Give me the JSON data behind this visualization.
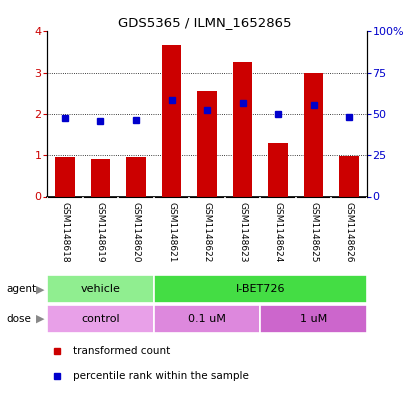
{
  "title": "GDS5365 / ILMN_1652865",
  "samples": [
    "GSM1148618",
    "GSM1148619",
    "GSM1148620",
    "GSM1148621",
    "GSM1148622",
    "GSM1148623",
    "GSM1148624",
    "GSM1148625",
    "GSM1148626"
  ],
  "bar_values": [
    0.95,
    0.92,
    0.95,
    3.67,
    2.55,
    3.27,
    1.3,
    3.0,
    0.97
  ],
  "dot_values": [
    1.9,
    1.83,
    1.85,
    2.33,
    2.1,
    2.27,
    2.0,
    2.22,
    1.93
  ],
  "ylim_left": [
    0,
    4
  ],
  "ylim_right": [
    0,
    100
  ],
  "yticks_left": [
    0,
    1,
    2,
    3,
    4
  ],
  "yticks_right": [
    0,
    25,
    50,
    75,
    100
  ],
  "yticklabels_right": [
    "0",
    "25",
    "50",
    "75",
    "100%"
  ],
  "bar_color": "#cc0000",
  "dot_color": "#0000cc",
  "agent_groups": [
    {
      "label": "vehicle",
      "start": 0,
      "end": 3,
      "color": "#90ee90"
    },
    {
      "label": "I-BET726",
      "start": 3,
      "end": 9,
      "color": "#44dd44"
    }
  ],
  "dose_groups": [
    {
      "label": "control",
      "start": 0,
      "end": 3,
      "color": "#e8a0e8"
    },
    {
      "label": "0.1 uM",
      "start": 3,
      "end": 6,
      "color": "#dd88dd"
    },
    {
      "label": "1 uM",
      "start": 6,
      "end": 9,
      "color": "#cc66cc"
    }
  ],
  "legend_items": [
    {
      "label": "transformed count",
      "color": "#cc0000"
    },
    {
      "label": "percentile rank within the sample",
      "color": "#0000cc"
    }
  ],
  "bg_color": "#ffffff",
  "label_bg_color": "#cccccc",
  "label_border_color": "#aaaaaa"
}
